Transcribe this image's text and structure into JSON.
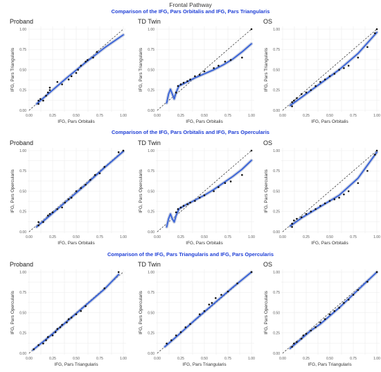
{
  "main_title": "Frontal Pathway",
  "section_titles": [
    "Comparison of the IFG, Pars Orbitalis and IFG, Pars Triangularis",
    "Comparison of the IFG, Pars Orbitalis and IFG, Pars Opercularis",
    "Comparison of the IFG, Pars Triangularis and IFG, Pars Opercularis"
  ],
  "colors": {
    "smooth_line": "#3560d8",
    "smooth_band": "#9aa8c8",
    "points": "#111111",
    "identity_line": "#222222",
    "grid": "#ebebeb",
    "section_title": "#1f3fd6"
  },
  "chart_data": [
    {
      "type": "scatter",
      "title": "Proband",
      "xlabel": "IFG, Pars Orbitalis",
      "ylabel": "IFG, Pars Triangularis",
      "xlim": [
        0,
        1
      ],
      "ylim": [
        0,
        1
      ],
      "x_ticks": [
        "0.00",
        "0.25",
        "0.50",
        "0.75",
        "1.00"
      ],
      "y_ticks": [
        "0.00",
        "0.25",
        "0.50",
        "0.75",
        "1.00"
      ],
      "points": [
        [
          0.1,
          0.08
        ],
        [
          0.1,
          0.12
        ],
        [
          0.12,
          0.14
        ],
        [
          0.15,
          0.12
        ],
        [
          0.18,
          0.18
        ],
        [
          0.2,
          0.22
        ],
        [
          0.22,
          0.25
        ],
        [
          0.22,
          0.28
        ],
        [
          0.3,
          0.35
        ],
        [
          0.35,
          0.32
        ],
        [
          0.42,
          0.38
        ],
        [
          0.45,
          0.42
        ],
        [
          0.5,
          0.46
        ],
        [
          0.52,
          0.5
        ],
        [
          0.55,
          0.55
        ],
        [
          0.6,
          0.6
        ],
        [
          0.62,
          0.62
        ],
        [
          0.68,
          0.65
        ],
        [
          0.72,
          0.72
        ]
      ],
      "smooth": [
        [
          0.08,
          0.08
        ],
        [
          0.2,
          0.2
        ],
        [
          0.4,
          0.4
        ],
        [
          0.6,
          0.59
        ],
        [
          0.8,
          0.77
        ],
        [
          1.0,
          0.93
        ]
      ]
    },
    {
      "type": "scatter",
      "title": "TD Twin",
      "xlabel": "IFG, Pars Orbitalis",
      "ylabel": "IFG, Pars Triangularis",
      "xlim": [
        0,
        1
      ],
      "ylim": [
        0,
        1
      ],
      "x_ticks": [
        "0.00",
        "0.25",
        "0.50",
        "0.75",
        "1.00"
      ],
      "y_ticks": [
        "0.00",
        "0.25",
        "0.50",
        "0.75",
        "1.00"
      ],
      "points": [
        [
          0.2,
          0.22
        ],
        [
          0.22,
          0.3
        ],
        [
          0.25,
          0.32
        ],
        [
          0.28,
          0.34
        ],
        [
          0.32,
          0.36
        ],
        [
          0.35,
          0.38
        ],
        [
          0.4,
          0.42
        ],
        [
          0.45,
          0.44
        ],
        [
          0.5,
          0.48
        ],
        [
          0.6,
          0.52
        ],
        [
          0.65,
          0.55
        ],
        [
          0.72,
          0.6
        ],
        [
          0.78,
          0.62
        ],
        [
          0.9,
          0.65
        ],
        [
          1.0,
          1.0
        ]
      ],
      "smooth": [
        [
          0.1,
          0.09
        ],
        [
          0.12,
          0.2
        ],
        [
          0.14,
          0.26
        ],
        [
          0.16,
          0.2
        ],
        [
          0.18,
          0.14
        ],
        [
          0.2,
          0.22
        ],
        [
          0.23,
          0.3
        ],
        [
          0.3,
          0.34
        ],
        [
          0.4,
          0.4
        ],
        [
          0.5,
          0.45
        ],
        [
          0.6,
          0.5
        ],
        [
          0.7,
          0.56
        ],
        [
          0.8,
          0.63
        ],
        [
          0.9,
          0.72
        ],
        [
          1.0,
          0.82
        ]
      ]
    },
    {
      "type": "scatter",
      "title": "OS",
      "xlabel": "IFG, Pars Orbitalis",
      "ylabel": "IFG, Pars Triangularis",
      "xlim": [
        0,
        1
      ],
      "ylim": [
        0,
        1
      ],
      "x_ticks": [
        "0.00",
        "0.25",
        "0.50",
        "0.75",
        "1.00"
      ],
      "y_ticks": [
        "0.00",
        "0.25",
        "0.50",
        "0.75",
        "1.00"
      ],
      "points": [
        [
          0.1,
          0.05
        ],
        [
          0.1,
          0.1
        ],
        [
          0.12,
          0.12
        ],
        [
          0.15,
          0.15
        ],
        [
          0.2,
          0.2
        ],
        [
          0.25,
          0.22
        ],
        [
          0.3,
          0.25
        ],
        [
          0.35,
          0.3
        ],
        [
          0.4,
          0.35
        ],
        [
          0.45,
          0.38
        ],
        [
          0.5,
          0.42
        ],
        [
          0.55,
          0.45
        ],
        [
          0.6,
          0.5
        ],
        [
          0.65,
          0.52
        ],
        [
          0.7,
          0.55
        ],
        [
          0.8,
          0.65
        ],
        [
          0.9,
          0.78
        ],
        [
          0.98,
          0.95
        ],
        [
          1.0,
          1.0
        ]
      ],
      "smooth": [
        [
          0.08,
          0.06
        ],
        [
          0.2,
          0.16
        ],
        [
          0.4,
          0.33
        ],
        [
          0.6,
          0.5
        ],
        [
          0.8,
          0.7
        ],
        [
          1.0,
          0.96
        ]
      ]
    },
    {
      "type": "scatter",
      "title": "Proband",
      "xlabel": "IFG, Pars Orbitalis",
      "ylabel": "IFG, Pars Opercularis",
      "xlim": [
        0,
        1
      ],
      "ylim": [
        0,
        1
      ],
      "x_ticks": [
        "0.00",
        "0.25",
        "0.50",
        "0.75",
        "1.00"
      ],
      "y_ticks": [
        "0.00",
        "0.25",
        "0.50",
        "0.75",
        "1.00"
      ],
      "points": [
        [
          0.1,
          0.08
        ],
        [
          0.1,
          0.12
        ],
        [
          0.15,
          0.12
        ],
        [
          0.2,
          0.2
        ],
        [
          0.22,
          0.22
        ],
        [
          0.25,
          0.24
        ],
        [
          0.3,
          0.28
        ],
        [
          0.35,
          0.3
        ],
        [
          0.38,
          0.36
        ],
        [
          0.42,
          0.4
        ],
        [
          0.45,
          0.42
        ],
        [
          0.5,
          0.5
        ],
        [
          0.55,
          0.54
        ],
        [
          0.6,
          0.58
        ],
        [
          0.65,
          0.64
        ],
        [
          0.7,
          0.7
        ],
        [
          0.75,
          0.72
        ],
        [
          0.8,
          0.8
        ],
        [
          0.95,
          0.98
        ],
        [
          1.0,
          1.0
        ]
      ],
      "smooth": [
        [
          0.08,
          0.06
        ],
        [
          0.2,
          0.18
        ],
        [
          0.4,
          0.38
        ],
        [
          0.6,
          0.58
        ],
        [
          0.8,
          0.79
        ],
        [
          1.0,
          0.99
        ]
      ]
    },
    {
      "type": "scatter",
      "title": "TD Twin",
      "xlabel": "IFG, Pars Orbitalis",
      "ylabel": "IFG, Pars Opercularis",
      "xlim": [
        0,
        1
      ],
      "ylim": [
        0,
        1
      ],
      "x_ticks": [
        "0.00",
        "0.25",
        "0.50",
        "0.75",
        "1.00"
      ],
      "y_ticks": [
        "0.00",
        "0.25",
        "0.50",
        "0.75",
        "1.00"
      ],
      "points": [
        [
          0.2,
          0.24
        ],
        [
          0.22,
          0.28
        ],
        [
          0.25,
          0.3
        ],
        [
          0.28,
          0.32
        ],
        [
          0.32,
          0.34
        ],
        [
          0.35,
          0.36
        ],
        [
          0.4,
          0.38
        ],
        [
          0.45,
          0.42
        ],
        [
          0.5,
          0.45
        ],
        [
          0.6,
          0.5
        ],
        [
          0.65,
          0.55
        ],
        [
          0.72,
          0.6
        ],
        [
          0.78,
          0.62
        ],
        [
          0.9,
          0.7
        ],
        [
          1.0,
          1.0
        ]
      ],
      "smooth": [
        [
          0.1,
          0.06
        ],
        [
          0.12,
          0.16
        ],
        [
          0.14,
          0.22
        ],
        [
          0.16,
          0.16
        ],
        [
          0.18,
          0.12
        ],
        [
          0.2,
          0.2
        ],
        [
          0.23,
          0.28
        ],
        [
          0.3,
          0.33
        ],
        [
          0.4,
          0.39
        ],
        [
          0.5,
          0.45
        ],
        [
          0.6,
          0.52
        ],
        [
          0.7,
          0.6
        ],
        [
          0.8,
          0.68
        ],
        [
          0.9,
          0.77
        ],
        [
          1.0,
          0.88
        ]
      ]
    },
    {
      "type": "scatter",
      "title": "OS",
      "xlabel": "IFG, Pars Orbitalis",
      "ylabel": "IFG, Pars Opercularis",
      "xlim": [
        0,
        1
      ],
      "ylim": [
        0,
        1
      ],
      "x_ticks": [
        "0.00",
        "0.25",
        "0.50",
        "0.75",
        "1.00"
      ],
      "y_ticks": [
        "0.00",
        "0.25",
        "0.50",
        "0.75",
        "1.00"
      ],
      "points": [
        [
          0.1,
          0.06
        ],
        [
          0.1,
          0.1
        ],
        [
          0.12,
          0.14
        ],
        [
          0.15,
          0.16
        ],
        [
          0.2,
          0.18
        ],
        [
          0.25,
          0.22
        ],
        [
          0.3,
          0.25
        ],
        [
          0.35,
          0.28
        ],
        [
          0.4,
          0.32
        ],
        [
          0.45,
          0.35
        ],
        [
          0.5,
          0.38
        ],
        [
          0.55,
          0.4
        ],
        [
          0.6,
          0.42
        ],
        [
          0.65,
          0.46
        ],
        [
          0.7,
          0.5
        ],
        [
          0.8,
          0.6
        ],
        [
          0.9,
          0.75
        ],
        [
          0.98,
          0.95
        ],
        [
          1.0,
          1.0
        ]
      ],
      "smooth": [
        [
          0.08,
          0.07
        ],
        [
          0.2,
          0.17
        ],
        [
          0.4,
          0.31
        ],
        [
          0.6,
          0.45
        ],
        [
          0.8,
          0.66
        ],
        [
          1.0,
          0.98
        ]
      ]
    },
    {
      "type": "scatter",
      "title": "Proband",
      "xlabel": "IFG, Pars Triangularis",
      "ylabel": "IFG, Pars Opercularis",
      "xlim": [
        0,
        1
      ],
      "ylim": [
        0,
        1
      ],
      "x_ticks": [
        "0.00",
        "0.25",
        "0.50",
        "0.75",
        "1.00"
      ],
      "y_ticks": [
        "0.00",
        "0.25",
        "0.50",
        "0.75",
        "1.00"
      ],
      "points": [
        [
          0.05,
          0.05
        ],
        [
          0.1,
          0.1
        ],
        [
          0.15,
          0.12
        ],
        [
          0.18,
          0.16
        ],
        [
          0.2,
          0.2
        ],
        [
          0.25,
          0.22
        ],
        [
          0.28,
          0.26
        ],
        [
          0.3,
          0.3
        ],
        [
          0.33,
          0.32
        ],
        [
          0.35,
          0.35
        ],
        [
          0.4,
          0.38
        ],
        [
          0.42,
          0.42
        ],
        [
          0.45,
          0.44
        ],
        [
          0.5,
          0.48
        ],
        [
          0.55,
          0.52
        ],
        [
          0.6,
          0.58
        ],
        [
          0.8,
          0.8
        ],
        [
          0.95,
          1.0
        ]
      ],
      "smooth": [
        [
          0.04,
          0.04
        ],
        [
          0.2,
          0.19
        ],
        [
          0.4,
          0.39
        ],
        [
          0.6,
          0.59
        ],
        [
          0.8,
          0.79
        ],
        [
          0.95,
          0.97
        ]
      ]
    },
    {
      "type": "scatter",
      "title": "TD Twin",
      "xlabel": "IFG, Pars Triangularis",
      "ylabel": "IFG, Pars Opercularis",
      "xlim": [
        0,
        1
      ],
      "ylim": [
        0,
        1
      ],
      "x_ticks": [
        "0.00",
        "0.25",
        "0.50",
        "0.75",
        "1.00"
      ],
      "y_ticks": [
        "0.00",
        "0.25",
        "0.50",
        "0.75",
        "1.00"
      ],
      "points": [
        [
          0.1,
          0.12
        ],
        [
          0.15,
          0.16
        ],
        [
          0.2,
          0.22
        ],
        [
          0.25,
          0.26
        ],
        [
          0.3,
          0.32
        ],
        [
          0.35,
          0.36
        ],
        [
          0.45,
          0.48
        ],
        [
          0.5,
          0.52
        ],
        [
          0.55,
          0.6
        ],
        [
          0.58,
          0.62
        ],
        [
          0.62,
          0.68
        ],
        [
          0.68,
          0.72
        ],
        [
          0.75,
          0.76
        ],
        [
          0.85,
          0.86
        ],
        [
          1.0,
          1.0
        ]
      ],
      "smooth": [
        [
          0.08,
          0.08
        ],
        [
          0.2,
          0.2
        ],
        [
          0.4,
          0.41
        ],
        [
          0.6,
          0.61
        ],
        [
          0.8,
          0.81
        ],
        [
          1.0,
          1.0
        ]
      ]
    },
    {
      "type": "scatter",
      "title": "OS",
      "xlabel": "IFG, Pars Triangularis",
      "ylabel": "IFG, Pars Opercularis",
      "xlim": [
        0,
        1
      ],
      "ylim": [
        0,
        1
      ],
      "x_ticks": [
        "0.00",
        "0.25",
        "0.50",
        "0.75",
        "1.00"
      ],
      "y_ticks": [
        "0.00",
        "0.25",
        "0.50",
        "0.75",
        "1.00"
      ],
      "points": [
        [
          0.1,
          0.08
        ],
        [
          0.12,
          0.12
        ],
        [
          0.15,
          0.14
        ],
        [
          0.2,
          0.18
        ],
        [
          0.22,
          0.22
        ],
        [
          0.25,
          0.24
        ],
        [
          0.3,
          0.28
        ],
        [
          0.35,
          0.32
        ],
        [
          0.4,
          0.38
        ],
        [
          0.45,
          0.42
        ],
        [
          0.5,
          0.48
        ],
        [
          0.55,
          0.52
        ],
        [
          0.6,
          0.56
        ],
        [
          0.65,
          0.62
        ],
        [
          0.7,
          0.66
        ],
        [
          0.75,
          0.72
        ],
        [
          0.8,
          0.78
        ],
        [
          0.9,
          0.88
        ],
        [
          1.0,
          1.0
        ]
      ],
      "smooth": [
        [
          0.08,
          0.06
        ],
        [
          0.2,
          0.18
        ],
        [
          0.3,
          0.28
        ],
        [
          0.4,
          0.36
        ],
        [
          0.5,
          0.46
        ],
        [
          0.6,
          0.56
        ],
        [
          0.8,
          0.78
        ],
        [
          1.0,
          1.0
        ]
      ]
    }
  ]
}
